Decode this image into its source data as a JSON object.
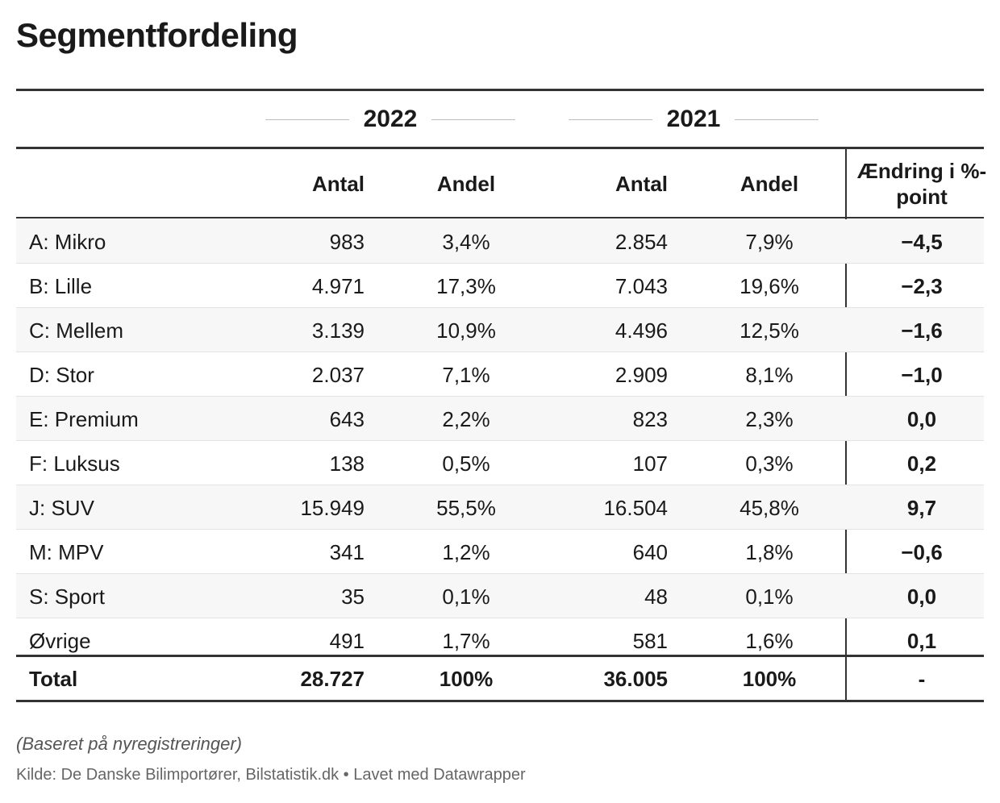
{
  "title": "Segmentfordeling",
  "group_headers": [
    "2022",
    "2021"
  ],
  "column_headers": {
    "antal_2022": "Antal",
    "andel_2022": "Andel",
    "antal_2021": "Antal",
    "andel_2021": "Andel",
    "change": "Ændring i %-point"
  },
  "rows": [
    {
      "label": "A: Mikro",
      "antal_2022": "983",
      "andel_2022": "3,4%",
      "antal_2021": "2.854",
      "andel_2021": "7,9%",
      "change": "−4,5"
    },
    {
      "label": "B: Lille",
      "antal_2022": "4.971",
      "andel_2022": "17,3%",
      "antal_2021": "7.043",
      "andel_2021": "19,6%",
      "change": "−2,3"
    },
    {
      "label": "C: Mellem",
      "antal_2022": "3.139",
      "andel_2022": "10,9%",
      "antal_2021": "4.496",
      "andel_2021": "12,5%",
      "change": "−1,6"
    },
    {
      "label": "D: Stor",
      "antal_2022": "2.037",
      "andel_2022": "7,1%",
      "antal_2021": "2.909",
      "andel_2021": "8,1%",
      "change": "−1,0"
    },
    {
      "label": "E: Premium",
      "antal_2022": "643",
      "andel_2022": "2,2%",
      "antal_2021": "823",
      "andel_2021": "2,3%",
      "change": "0,0"
    },
    {
      "label": "F: Luksus",
      "antal_2022": "138",
      "andel_2022": "0,5%",
      "antal_2021": "107",
      "andel_2021": "0,3%",
      "change": "0,2"
    },
    {
      "label": "J: SUV",
      "antal_2022": "15.949",
      "andel_2022": "55,5%",
      "antal_2021": "16.504",
      "andel_2021": "45,8%",
      "change": "9,7"
    },
    {
      "label": "M: MPV",
      "antal_2022": "341",
      "andel_2022": "1,2%",
      "antal_2021": "640",
      "andel_2021": "1,8%",
      "change": "−0,6"
    },
    {
      "label": "S: Sport",
      "antal_2022": "35",
      "andel_2022": "0,1%",
      "antal_2021": "48",
      "andel_2021": "0,1%",
      "change": "0,0"
    },
    {
      "label": "Øvrige",
      "antal_2022": "491",
      "andel_2022": "1,7%",
      "antal_2021": "581",
      "andel_2021": "1,6%",
      "change": "0,1"
    }
  ],
  "total": {
    "label": "Total",
    "antal_2022": "28.727",
    "andel_2022": "100%",
    "antal_2021": "36.005",
    "andel_2021": "100%",
    "change": "-"
  },
  "note": "(Baseret på nyregistreringer)",
  "source": "Kilde: De Danske Bilimportører, Bilstatistik.dk • Lavet med Datawrapper",
  "chart_data": {
    "type": "table",
    "title": "Segmentfordeling",
    "columns": [
      "",
      "2022 Antal",
      "2022 Andel",
      "2021 Antal",
      "2021 Andel",
      "Ændring i %-point"
    ],
    "categories": [
      "A: Mikro",
      "B: Lille",
      "C: Mellem",
      "D: Stor",
      "E: Premium",
      "F: Luksus",
      "J: SUV",
      "M: MPV",
      "S: Sport",
      "Øvrige"
    ],
    "series": [
      {
        "name": "2022 Antal",
        "values": [
          983,
          4971,
          3139,
          2037,
          643,
          138,
          15949,
          341,
          35,
          491
        ]
      },
      {
        "name": "2022 Andel",
        "values": [
          3.4,
          17.3,
          10.9,
          7.1,
          2.2,
          0.5,
          55.5,
          1.2,
          0.1,
          1.7
        ]
      },
      {
        "name": "2021 Antal",
        "values": [
          2854,
          7043,
          4496,
          2909,
          823,
          107,
          16504,
          640,
          48,
          581
        ]
      },
      {
        "name": "2021 Andel",
        "values": [
          7.9,
          19.6,
          12.5,
          8.1,
          2.3,
          0.3,
          45.8,
          1.8,
          0.1,
          1.6
        ]
      },
      {
        "name": "Ændring i %-point",
        "values": [
          -4.5,
          -2.3,
          -1.6,
          -1.0,
          0.0,
          0.2,
          9.7,
          -0.6,
          0.0,
          0.1
        ]
      }
    ],
    "totals": {
      "2022 Antal": 28727,
      "2022 Andel": 100,
      "2021 Antal": 36005,
      "2021 Andel": 100
    }
  }
}
